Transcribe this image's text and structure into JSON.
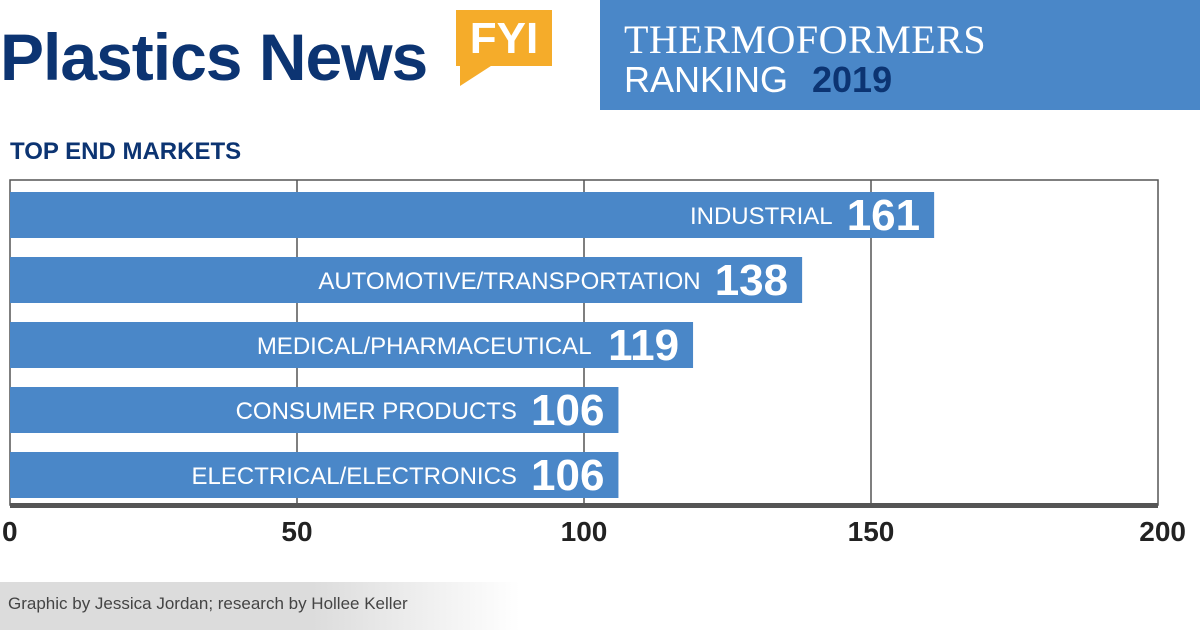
{
  "header": {
    "logo_text": "Plastics News",
    "logo_badge": "FYI",
    "banner_line1": "THERMOFORMERS",
    "banner_line2": "RANKING",
    "banner_year": "2019"
  },
  "colors": {
    "bar": "#4a87c8",
    "navy": "#0c3472",
    "badge": "#f5ac2a"
  },
  "chart_data": {
    "type": "bar",
    "orientation": "horizontal",
    "title": "TOP END MARKETS",
    "categories": [
      "INDUSTRIAL",
      "AUTOMOTIVE/TRANSPORTATION",
      "MEDICAL/PHARMACEUTICAL",
      "CONSUMER PRODUCTS",
      "ELECTRICAL/ELECTRONICS"
    ],
    "values": [
      161,
      138,
      119,
      106,
      106
    ],
    "xlim": [
      0,
      200
    ],
    "xticks": [
      0,
      50,
      100,
      150,
      200
    ],
    "grid": true
  },
  "footer": {
    "credit": "Graphic by Jessica Jordan; research by Hollee Keller"
  }
}
